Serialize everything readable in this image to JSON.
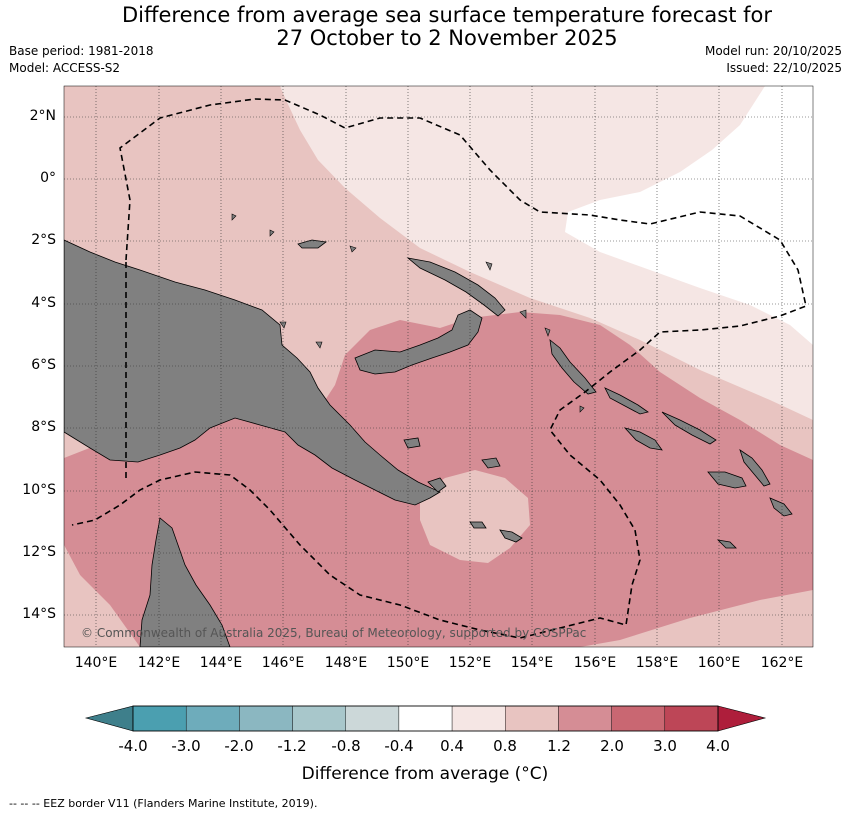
{
  "title": {
    "line1": "Difference from average sea surface temperature forecast for",
    "line2": "27 October to 2 November 2025"
  },
  "meta": {
    "base_period": "Base period: 1981-2018",
    "model": "Model: ACCESS-S2",
    "model_run": "Model run: 20/10/2025",
    "issued": "Issued: 22/10/2025"
  },
  "map": {
    "y_labels": [
      "2°N",
      "0°",
      "2°S",
      "4°S",
      "6°S",
      "8°S",
      "10°S",
      "12°S",
      "14°S"
    ],
    "x_labels": [
      "140°E",
      "142°E",
      "144°E",
      "146°E",
      "148°E",
      "150°E",
      "152°E",
      "154°E",
      "156°E",
      "158°E",
      "160°E",
      "162°E"
    ],
    "copyright": "© Commonwealth of Australia 2025, Bureau of Meteorology, supported by COSPPac",
    "colors": {
      "land": "#808080",
      "c_04_08": "#f5e6e4",
      "c_08_12": "#e8c4c1",
      "c_12_20": "#d58d95",
      "white_band": "#ffffff"
    }
  },
  "colorbar": {
    "tick_labels": [
      "-4.0",
      "-3.0",
      "-2.0",
      "-1.2",
      "-0.8",
      "-0.4",
      "0.4",
      "0.8",
      "1.2",
      "2.0",
      "3.0",
      "4.0"
    ],
    "colors": [
      "#4b9fb0",
      "#6eacbb",
      "#8bb7c1",
      "#a8c7cb",
      "#ccd8d9",
      "#ffffff",
      "#f5e6e4",
      "#e8c4c1",
      "#d58d95",
      "#c96772",
      "#bd4657"
    ],
    "under_color": "#3e7f8b",
    "over_color": "#ae1e3b",
    "label": "Difference from average (°C)"
  },
  "legend": {
    "text": "--  --  -- EEZ border V11 (Flanders Marine Institute, 2019)."
  }
}
